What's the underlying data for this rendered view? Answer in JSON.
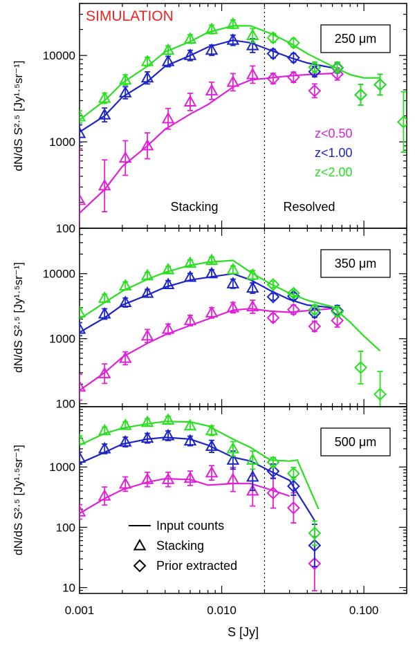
{
  "chart_data": {
    "type": "line",
    "xlabel": "S [Jy]",
    "xscale": "log",
    "xlim": [
      0.001,
      0.2
    ],
    "x_ticks": [
      {
        "v": 0.001,
        "label": "0.001"
      },
      {
        "v": 0.01,
        "label": "0.010"
      },
      {
        "v": 0.1,
        "label": "0.100"
      }
    ],
    "divider_x": 0.02,
    "title": "SIMULATION",
    "title_color": "#f02222",
    "ylabel_main": "dN/dS S",
    "ylabel_exp": "2.5",
    "ylabel_unit1": "[Jy",
    "ylabel_unit1_exp": "1.5",
    "ylabel_unit2": "sr",
    "ylabel_unit2_exp": "-1",
    "ylabel_close": "]",
    "region_labels": {
      "stacking": "Stacking",
      "resolved": "Resolved"
    },
    "redshift_legend": [
      {
        "label": "z<0.50",
        "color": "#e020d8"
      },
      {
        "label": "z<1.00",
        "color": "#1c24c8"
      },
      {
        "label": "z<2.00",
        "color": "#28e020"
      }
    ],
    "symbol_legend": [
      {
        "kind": "line",
        "label": "Input counts"
      },
      {
        "kind": "triangle",
        "label": "Stacking"
      },
      {
        "kind": "diamond",
        "label": "Prior extracted"
      }
    ],
    "panels": [
      {
        "band": "250",
        "unit": "μm",
        "ylim": [
          100,
          40000
        ],
        "y_ticks": [
          100,
          1000,
          10000
        ],
        "input_counts": {
          "z<0.50": {
            "x": [
              0.001,
              0.0015,
              0.002,
              0.003,
              0.004,
              0.006,
              0.008,
              0.012,
              0.016,
              0.022,
              0.03,
              0.04,
              0.06
            ],
            "y": [
              150,
              280,
              520,
              900,
              1400,
              2100,
              2700,
              4300,
              5200,
              5500,
              5800,
              6000,
              6200
            ]
          },
          "z<1.00": {
            "x": [
              0.001,
              0.0015,
              0.002,
              0.003,
              0.004,
              0.006,
              0.008,
              0.012,
              0.016,
              0.022,
              0.03,
              0.04,
              0.06
            ],
            "y": [
              1300,
              2000,
              3300,
              5000,
              7500,
              10000,
              12500,
              15000,
              14000,
              11500,
              9500,
              8200,
              7200
            ]
          },
          "z<2.00": {
            "x": [
              0.001,
              0.0015,
              0.002,
              0.003,
              0.004,
              0.006,
              0.008,
              0.012,
              0.016,
              0.022,
              0.03,
              0.04,
              0.06,
              0.08,
              0.1,
              0.13
            ],
            "y": [
              1800,
              3000,
              4800,
              7500,
              11000,
              14500,
              18500,
              22000,
              22000,
              18000,
              14000,
              10500,
              7500,
              6000,
              5500,
              5500
            ]
          }
        },
        "stacking": {
          "z<0.50": {
            "x": [
              0.001,
              0.0015,
              0.0021,
              0.003,
              0.0042,
              0.006,
              0.0085,
              0.012,
              0.0165
            ],
            "y": [
              210,
              310,
              650,
              900,
              1850,
              2900,
              3900,
              4900,
              6000
            ],
            "err": [
              0.6,
              0.3,
              0.2,
              0.15,
              0.12,
              0.1,
              0.1,
              0.1,
              0.1
            ]
          },
          "z<1.00": {
            "x": [
              0.001,
              0.0015,
              0.0021,
              0.003,
              0.0042,
              0.006,
              0.0085,
              0.012,
              0.0165
            ],
            "y": [
              1250,
              2050,
              3700,
              5500,
              8500,
              10000,
              11500,
              15000,
              13000
            ],
            "err": [
              0.1,
              0.08,
              0.07,
              0.07,
              0.06,
              0.06,
              0.06,
              0.06,
              0.08
            ]
          },
          "z<2.00": {
            "x": [
              0.001,
              0.0015,
              0.0021,
              0.003,
              0.0042,
              0.006,
              0.0085,
              0.012,
              0.0165
            ],
            "y": [
              1950,
              3200,
              5200,
              8500,
              11500,
              15500,
              20000,
              23000,
              17000
            ],
            "err": [
              0.07,
              0.06,
              0.06,
              0.05,
              0.05,
              0.05,
              0.05,
              0.05,
              0.08
            ]
          }
        },
        "prior": {
          "z<0.50": {
            "x": [
              0.023,
              0.032,
              0.045,
              0.065
            ],
            "y": [
              5400,
              5600,
              3900,
              6100
            ],
            "err": [
              0.06,
              0.06,
              0.08,
              0.07
            ]
          },
          "z<1.00": {
            "x": [
              0.023,
              0.032,
              0.045,
              0.065,
              0.095,
              0.13
            ],
            "y": [
              10500,
              9400,
              6500,
              7200,
              3500,
              4600
            ],
            "err": [
              0.05,
              0.05,
              0.06,
              0.06,
              0.12,
              0.12
            ]
          },
          "z<2.00": {
            "x": [
              0.023,
              0.032,
              0.045,
              0.065,
              0.095,
              0.13,
              0.19
            ],
            "y": [
              16000,
              14000,
              7300,
              7300,
              3500,
              4600,
              1700
            ],
            "err": [
              0.05,
              0.05,
              0.06,
              0.06,
              0.12,
              0.12,
              0.35
            ]
          }
        }
      },
      {
        "band": "350",
        "unit": "μm",
        "ylim": [
          90,
          50000
        ],
        "y_ticks": [
          100,
          1000,
          10000
        ],
        "input_counts": {
          "z<0.50": {
            "x": [
              0.001,
              0.0015,
              0.002,
              0.003,
              0.004,
              0.006,
              0.008,
              0.012,
              0.016,
              0.022,
              0.03,
              0.04,
              0.06
            ],
            "y": [
              160,
              300,
              520,
              850,
              1150,
              1600,
              2000,
              2750,
              2900,
              2650,
              2550,
              2700,
              2900
            ]
          },
          "z<1.00": {
            "x": [
              0.001,
              0.0015,
              0.002,
              0.003,
              0.004,
              0.006,
              0.008,
              0.012,
              0.016,
              0.022,
              0.03,
              0.04,
              0.06
            ],
            "y": [
              1250,
              2100,
              3300,
              4700,
              6200,
              8000,
              8800,
              10000,
              8000,
              5500,
              4000,
              3300,
              3000
            ]
          },
          "z<2.00": {
            "x": [
              0.001,
              0.0015,
              0.002,
              0.003,
              0.004,
              0.006,
              0.008,
              0.012,
              0.016,
              0.022,
              0.03,
              0.04,
              0.06,
              0.08,
              0.1,
              0.13
            ],
            "y": [
              2000,
              3600,
              5400,
              8200,
              10500,
              13500,
              15000,
              16000,
              10500,
              7000,
              5000,
              3900,
              3100,
              1800,
              1100,
              650
            ]
          }
        },
        "stacking": {
          "z<0.50": {
            "x": [
              0.001,
              0.0015,
              0.0021,
              0.003,
              0.0042,
              0.006,
              0.0085,
              0.012,
              0.0165
            ],
            "y": [
              180,
              290,
              500,
              1100,
              1400,
              1900,
              2500,
              3000,
              3100
            ],
            "err": [
              0.2,
              0.15,
              0.1,
              0.1,
              0.08,
              0.08,
              0.08,
              0.08,
              0.1
            ]
          },
          "z<1.00": {
            "x": [
              0.001,
              0.0015,
              0.0021,
              0.003,
              0.0042,
              0.006,
              0.0085,
              0.012,
              0.0165
            ],
            "y": [
              1400,
              2400,
              3600,
              5000,
              6800,
              8800,
              10000,
              7000,
              6000
            ],
            "err": [
              0.1,
              0.08,
              0.07,
              0.06,
              0.06,
              0.06,
              0.06,
              0.07,
              0.08
            ]
          },
          "z<2.00": {
            "x": [
              0.001,
              0.0015,
              0.0021,
              0.003,
              0.0042,
              0.006,
              0.0085,
              0.012,
              0.0165
            ],
            "y": [
              2500,
              4200,
              6500,
              9300,
              11500,
              14500,
              16000,
              11500,
              9500
            ],
            "err": [
              0.07,
              0.06,
              0.06,
              0.05,
              0.05,
              0.05,
              0.05,
              0.06,
              0.07
            ]
          }
        },
        "prior": {
          "z<0.50": {
            "x": [
              0.023,
              0.032,
              0.045,
              0.065
            ],
            "y": [
              2100,
              2800,
              1550,
              1900
            ],
            "err": [
              0.06,
              0.07,
              0.08,
              0.1
            ]
          },
          "z<1.00": {
            "x": [
              0.023,
              0.032,
              0.045,
              0.065
            ],
            "y": [
              4400,
              4500,
              2500,
              2700
            ],
            "err": [
              0.05,
              0.05,
              0.07,
              0.08
            ]
          },
          "z<2.00": {
            "x": [
              0.023,
              0.032,
              0.045,
              0.065,
              0.095,
              0.13
            ],
            "y": [
              6800,
              5000,
              2800,
              2600,
              360,
              140
            ],
            "err": [
              0.05,
              0.05,
              0.07,
              0.08,
              0.25,
              0.35
            ]
          }
        }
      },
      {
        "band": "500",
        "unit": "μm",
        "ylim": [
          8,
          10000
        ],
        "y_ticks": [
          10,
          100,
          1000
        ],
        "input_counts": {
          "z<0.50": {
            "x": [
              0.001,
              0.0015,
              0.002,
              0.003,
              0.004,
              0.006,
              0.008,
              0.012,
              0.016,
              0.022,
              0.03
            ],
            "y": [
              170,
              300,
              420,
              560,
              640,
              620,
              500,
              530,
              530,
              420,
              330
            ]
          },
          "z<1.00": {
            "x": [
              0.001,
              0.0015,
              0.002,
              0.003,
              0.004,
              0.006,
              0.008,
              0.012,
              0.016,
              0.022,
              0.03,
              0.045
            ],
            "y": [
              1150,
              1750,
              2400,
              2900,
              3100,
              2900,
              2300,
              1450,
              1250,
              850,
              600,
              130
            ]
          },
          "z<2.00": {
            "x": [
              0.001,
              0.0015,
              0.002,
              0.003,
              0.004,
              0.006,
              0.008,
              0.012,
              0.016,
              0.022,
              0.03,
              0.034,
              0.048
            ],
            "y": [
              2300,
              3600,
              4400,
              5200,
              5700,
              5600,
              4800,
              2900,
              2100,
              1300,
              1250,
              1300,
              200
            ]
          }
        },
        "stacking": {
          "z<0.50": {
            "x": [
              0.001,
              0.0015,
              0.0021,
              0.003,
              0.0042,
              0.006,
              0.0085,
              0.012,
              0.0165
            ],
            "y": [
              180,
              330,
              520,
              620,
              620,
              650,
              800,
              620,
              400
            ],
            "err": [
              0.12,
              0.15,
              0.12,
              0.12,
              0.12,
              0.12,
              0.12,
              0.2,
              0.25
            ]
          },
          "z<1.00": {
            "x": [
              0.001,
              0.0015,
              0.0021,
              0.003,
              0.0042,
              0.006,
              0.0085,
              0.012,
              0.0165
            ],
            "y": [
              1400,
              2000,
              2600,
              3000,
              3300,
              2700,
              2200,
              1300,
              680
            ],
            "err": [
              0.1,
              0.08,
              0.08,
              0.08,
              0.08,
              0.08,
              0.1,
              0.15,
              0.22
            ]
          },
          "z<2.00": {
            "x": [
              0.001,
              0.0015,
              0.0021,
              0.003,
              0.0042,
              0.006,
              0.0085,
              0.012,
              0.0165
            ],
            "y": [
              2800,
              4000,
              4900,
              5500,
              6000,
              4800,
              4000,
              2000,
              1300
            ],
            "err": [
              0.07,
              0.06,
              0.06,
              0.06,
              0.06,
              0.06,
              0.08,
              0.12,
              0.15
            ]
          }
        },
        "prior": {
          "z<0.50": {
            "x": [
              0.023,
              0.032,
              0.045
            ],
            "y": [
              370,
              210,
              25
            ],
            "err": [
              0.25,
              0.25,
              0.45
            ]
          },
          "z<1.00": {
            "x": [
              0.023,
              0.032,
              0.045
            ],
            "y": [
              850,
              480,
              50
            ],
            "err": [
              0.12,
              0.15,
              0.35
            ]
          },
          "z<2.00": {
            "x": [
              0.023,
              0.032,
              0.045
            ],
            "y": [
              1200,
              780,
              80
            ],
            "err": [
              0.08,
              0.1,
              0.2
            ]
          }
        }
      }
    ]
  }
}
